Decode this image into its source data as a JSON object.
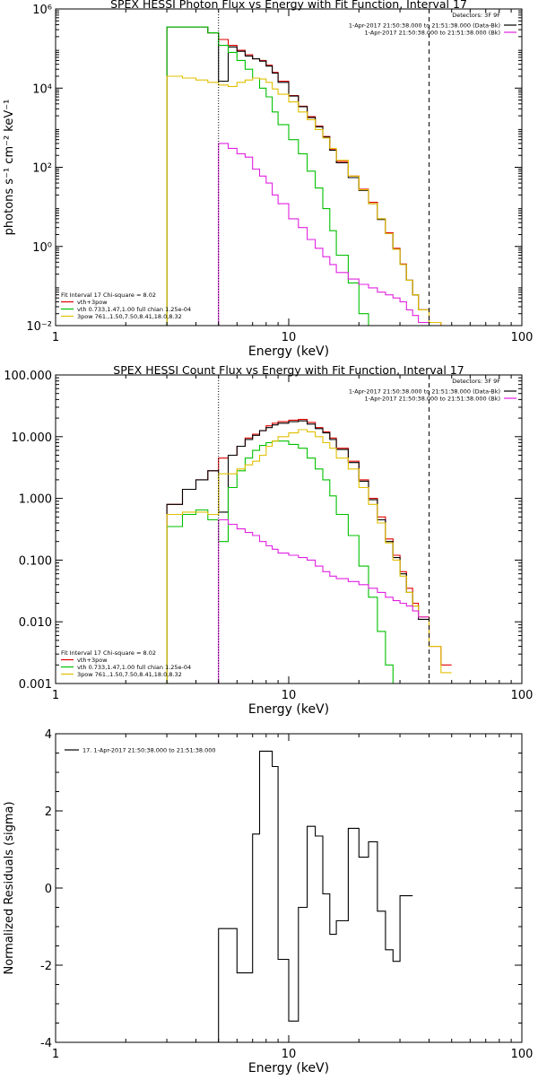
{
  "chart_data": [
    {
      "type": "line",
      "title": "SPEX HESSI Photon Flux vs Energy with Fit Function, Interval 17",
      "xlabel": "Energy (keV)",
      "ylabel": "photons s⁻¹ cm⁻² keV⁻¹",
      "xscale": "log",
      "yscale": "log",
      "xlim": [
        1,
        100
      ],
      "ylim": [
        0.01,
        1000000
      ],
      "x_ticks": [
        1,
        10,
        100
      ],
      "x_tick_labels": [
        "1",
        "10",
        "100"
      ],
      "y_ticks": [
        0.01,
        1,
        100,
        10000,
        1000000
      ],
      "y_tick_labels": [
        "10⁻²",
        "10⁰",
        "10²",
        "10⁴",
        "10⁶"
      ],
      "vlines": [
        {
          "x": 5.0,
          "style": "dotted",
          "color": "#000000"
        },
        {
          "x": 40.0,
          "style": "dashed",
          "color": "#000000"
        }
      ],
      "legend_topright": {
        "header": "Detectors: 3F 9F",
        "entries": [
          {
            "label": "1-Apr-2017 21:50:38.000 to 21:51:38.000 (Data-Bk)",
            "color": "#000000"
          },
          {
            "label": "1-Apr-2017 21:50:38.000 to 21:51:38.000 (Bk)",
            "color": "#e020e0"
          }
        ]
      },
      "legend_bottomleft": {
        "header": "Fit Interval 17    Chi-square = 8.02",
        "entries": [
          {
            "label": "vth+3pow",
            "color": "#e00000"
          },
          {
            "label": "vth 0.733,1.47,1.00  full chian 1.25e-04",
            "color": "#00c000"
          },
          {
            "label": "3pow 761.,1.50,7.50,8.41,18.0,8.32",
            "color": "#e0c000"
          }
        ]
      },
      "edges": [
        3,
        3.5,
        4,
        4.5,
        5,
        5.5,
        6,
        6.5,
        7,
        7.5,
        8,
        8.5,
        9,
        10,
        11,
        12,
        13,
        14,
        15,
        16,
        18,
        20,
        22,
        24,
        26,
        28,
        30,
        32,
        34,
        36,
        40,
        45,
        50
      ],
      "series": [
        {
          "color": "#e00000",
          "values": [
            350000,
            350000,
            350000,
            250000,
            170000,
            120000,
            90000,
            70000,
            55000,
            50000,
            38000,
            25000,
            15000,
            6500,
            3500,
            1900,
            1100,
            600,
            280,
            140,
            60,
            28,
            13,
            5,
            2.2,
            0.9,
            0.36,
            0.14,
            0.06,
            0.025,
            0.012,
            0.008
          ]
        },
        {
          "color": "#000000",
          "values": [
            350000,
            350000,
            350000,
            250000,
            15000,
            110000,
            85000,
            65000,
            55000,
            48000,
            36000,
            24000,
            14000,
            6300,
            3400,
            1800,
            1050,
            580,
            270,
            130,
            55,
            26,
            12,
            4.8,
            2.1,
            0.85,
            0.35,
            0.14,
            0.06,
            0.025
          ]
        },
        {
          "color": "#00c000",
          "values": [
            350000,
            350000,
            350000,
            250000,
            120000,
            80000,
            50000,
            30000,
            18000,
            10000,
            6000,
            2500,
            1200,
            500,
            220,
            80,
            30,
            9,
            2.5,
            0.6,
            0.12,
            0.02,
            0.003
          ]
        },
        {
          "color": "#e0c000",
          "values": [
            20000,
            18000,
            16000,
            14000,
            12000,
            11000,
            14000,
            16000,
            18000,
            17000,
            14000,
            9500,
            7000,
            4500,
            2500,
            1600,
            900,
            550,
            300,
            150,
            60,
            27,
            12,
            5,
            2.1,
            0.85,
            0.35,
            0.14,
            0.06,
            0.025,
            0.012,
            0.006
          ]
        },
        {
          "color": "#e020e0",
          "values": [
            null,
            null,
            null,
            null,
            400,
            300,
            220,
            180,
            90,
            60,
            40,
            20,
            12,
            5,
            3,
            1.5,
            0.9,
            0.55,
            0.35,
            0.22,
            0.15,
            0.11,
            0.09,
            0.07,
            0.06,
            0.05,
            0.04,
            0.025,
            0.018,
            0.012
          ]
        }
      ]
    },
    {
      "type": "line",
      "title": "SPEX HESSI Count Flux vs Energy with Fit Function, Interval 17",
      "xlabel": "Energy (keV)",
      "ylabel": "",
      "xscale": "log",
      "yscale": "log",
      "xlim": [
        1,
        100
      ],
      "ylim": [
        0.001,
        100
      ],
      "x_ticks": [
        1,
        10,
        100
      ],
      "x_tick_labels": [
        "1",
        "10",
        "100"
      ],
      "y_ticks": [
        0.001,
        0.01,
        0.1,
        1,
        10,
        100
      ],
      "y_tick_labels": [
        "0.001",
        "0.010",
        "0.100",
        "1.000",
        "10.000",
        "100.000"
      ],
      "vlines": [
        {
          "x": 5.0,
          "style": "dotted",
          "color": "#000000"
        },
        {
          "x": 40.0,
          "style": "dashed",
          "color": "#000000"
        }
      ],
      "legend_topright": {
        "header": "Detectors: 3F 9F",
        "entries": [
          {
            "label": "1-Apr-2017 21:50:38.000 to 21:51:38.000 (Data-Bk)",
            "color": "#000000"
          },
          {
            "label": "1-Apr-2017 21:50:38.000 to 21:51:38.000 (Bk)",
            "color": "#e020e0"
          }
        ]
      },
      "legend_bottomleft": {
        "header": "Fit Interval 17    Chi-square = 8.02",
        "entries": [
          {
            "label": "vth+3pow",
            "color": "#e00000"
          },
          {
            "label": "vth 0.733,1.47,1.00  full chian 1.25e-04",
            "color": "#00c000"
          },
          {
            "label": "3pow 761.,1.50,7.50,8.41,18.0,8.32",
            "color": "#e0c000"
          }
        ]
      },
      "edges": [
        3,
        3.5,
        4,
        4.5,
        5,
        5.5,
        6,
        6.5,
        7,
        7.5,
        8,
        8.5,
        9,
        10,
        11,
        12,
        13,
        14,
        15,
        16,
        18,
        20,
        22,
        24,
        26,
        28,
        30,
        32,
        34,
        36,
        40,
        45,
        50
      ],
      "series": [
        {
          "color": "#e00000",
          "values": [
            0.8,
            1.4,
            2.0,
            2.8,
            4.5,
            5.0,
            7.0,
            9.5,
            11.0,
            12.5,
            15.0,
            16.5,
            17.5,
            18.5,
            19.0,
            17.0,
            14.0,
            12.0,
            9.5,
            6.5,
            4.0,
            2.0,
            1.0,
            0.5,
            0.22,
            0.12,
            0.065,
            0.035,
            0.02,
            0.012,
            0.004,
            0.002
          ]
        },
        {
          "color": "#000000",
          "values": [
            0.8,
            1.4,
            2.0,
            2.8,
            0.6,
            5.0,
            7.0,
            9.0,
            10.5,
            12.5,
            14.0,
            15.5,
            16.5,
            17.5,
            18.0,
            16.0,
            13.5,
            11.5,
            9.0,
            6.2,
            3.8,
            1.9,
            0.95,
            0.45,
            0.2,
            0.11,
            0.06,
            0.03,
            0.018,
            0.011
          ]
        },
        {
          "color": "#00c000",
          "values": [
            0.35,
            0.55,
            0.65,
            0.45,
            0.2,
            1.5,
            2.8,
            4.5,
            6.0,
            7.2,
            8.0,
            8.5,
            8.5,
            7.5,
            6.5,
            4.5,
            3.0,
            2.0,
            1.1,
            0.55,
            0.25,
            0.08,
            0.025,
            0.007,
            0.002,
            0.0005
          ]
        },
        {
          "color": "#e0c000",
          "values": [
            0.55,
            0.6,
            0.6,
            0.55,
            2.5,
            2.5,
            3.0,
            3.5,
            4.0,
            5.0,
            7.0,
            8.5,
            10.0,
            11.5,
            13.0,
            12.0,
            10.0,
            8.0,
            6.5,
            4.5,
            3.0,
            1.5,
            0.8,
            0.4,
            0.19,
            0.1,
            0.055,
            0.03,
            0.018,
            0.012,
            0.004,
            0.0015
          ]
        },
        {
          "color": "#e020e0",
          "values": [
            null,
            null,
            null,
            null,
            0.45,
            0.38,
            0.32,
            0.28,
            0.25,
            0.2,
            0.17,
            0.15,
            0.13,
            0.12,
            0.11,
            0.1,
            0.08,
            0.065,
            0.055,
            0.05,
            0.045,
            0.04,
            0.035,
            0.03,
            0.025,
            0.022,
            0.02,
            0.018,
            0.015,
            0.012
          ]
        }
      ]
    },
    {
      "type": "line",
      "title": "",
      "xlabel": "Energy (keV)",
      "ylabel": "Normalized Residuals (sigma)",
      "xscale": "log",
      "yscale": "linear",
      "xlim": [
        1,
        100
      ],
      "ylim": [
        -4,
        4
      ],
      "x_ticks": [
        1,
        10,
        100
      ],
      "x_tick_labels": [
        "1",
        "10",
        "100"
      ],
      "y_ticks": [
        -4,
        -2,
        0,
        2,
        4
      ],
      "y_tick_labels": [
        "-4",
        "-2",
        "0",
        "2",
        "4"
      ],
      "legend_topleft": {
        "entries": [
          {
            "label": "17.  1-Apr-2017 21:50:38.000 to 21:51:38.000",
            "color": "#000000"
          }
        ]
      },
      "edges": [
        5,
        6,
        7,
        7.5,
        8.5,
        9,
        10,
        11,
        12,
        13,
        14,
        15,
        16,
        18,
        20,
        22,
        24,
        26,
        28,
        30,
        34,
        36,
        40
      ],
      "series": [
        {
          "color": "#000000",
          "values": [
            -1.05,
            -2.2,
            1.4,
            3.55,
            3.15,
            -1.85,
            -3.45,
            -0.5,
            1.6,
            1.35,
            -0.15,
            -1.2,
            -0.85,
            1.55,
            0.8,
            1.2,
            -0.6,
            -1.6,
            -1.9,
            -0.2
          ]
        }
      ]
    }
  ]
}
